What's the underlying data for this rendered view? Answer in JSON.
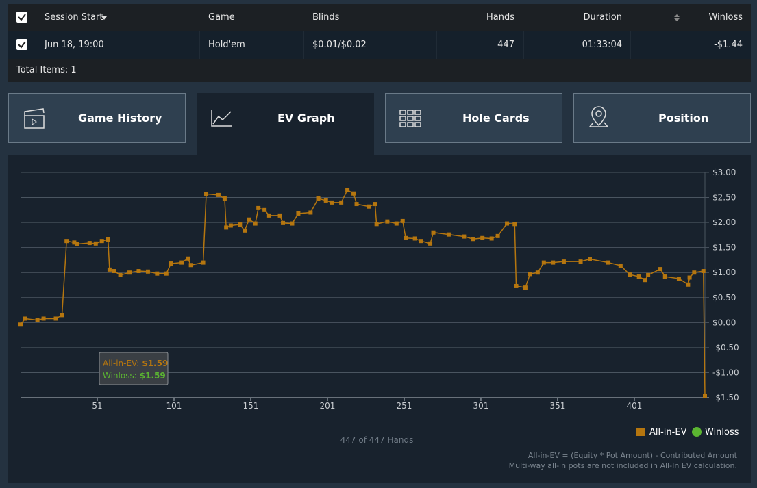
{
  "table": {
    "columns": [
      "Session Start",
      "Game",
      "Blinds",
      "Hands",
      "Duration",
      "Winloss"
    ],
    "rows": [
      [
        "Jun 18, 19:00",
        "Hold'em",
        "$0.01/$0.02",
        "447",
        "01:33:04",
        "-$1.44"
      ]
    ],
    "total": "Total Items: 1"
  },
  "tabs": [
    "Game History",
    "EV Graph",
    "Hole Cards",
    "Position"
  ],
  "chart_data": {
    "type": "line",
    "x": [
      1,
      4,
      12,
      16,
      24,
      28,
      31,
      36,
      38,
      46,
      50,
      54,
      58,
      59,
      62,
      66,
      72,
      78,
      84,
      90,
      96,
      99,
      106,
      110,
      112,
      120,
      122,
      130,
      134,
      135,
      138,
      144,
      147,
      150,
      154,
      156,
      160,
      163,
      170,
      172,
      178,
      182,
      190,
      195,
      200,
      204,
      210,
      214,
      218,
      220,
      228,
      232,
      233,
      240,
      246,
      250,
      252,
      258,
      262,
      268,
      270,
      280,
      290,
      296,
      302,
      308,
      312,
      318,
      323,
      324,
      330,
      333,
      338,
      342,
      348,
      355,
      366,
      372,
      384,
      392,
      398,
      404,
      408,
      410,
      418,
      421,
      430,
      436,
      437,
      440,
      446,
      447
    ],
    "series": [
      {
        "name": "All-in-EV",
        "color": "#b5760f",
        "values": [
          -0.04,
          0.08,
          0.05,
          0.08,
          0.08,
          0.15,
          1.63,
          1.6,
          1.57,
          1.59,
          1.58,
          1.63,
          1.66,
          1.06,
          1.03,
          0.95,
          1.0,
          1.03,
          1.02,
          0.98,
          0.98,
          1.18,
          1.2,
          1.28,
          1.15,
          1.2,
          2.57,
          2.55,
          2.48,
          1.9,
          1.94,
          1.96,
          1.84,
          2.06,
          1.98,
          2.29,
          2.25,
          2.14,
          2.14,
          1.99,
          1.98,
          2.18,
          2.2,
          2.48,
          2.44,
          2.4,
          2.4,
          2.65,
          2.58,
          2.37,
          2.32,
          2.37,
          1.97,
          2.02,
          1.98,
          2.03,
          1.69,
          1.68,
          1.63,
          1.58,
          1.8,
          1.76,
          1.72,
          1.67,
          1.69,
          1.68,
          1.73,
          1.98,
          1.97,
          0.73,
          0.7,
          0.97,
          1.0,
          1.2,
          1.2,
          1.22,
          1.22,
          1.27,
          1.2,
          1.14,
          0.96,
          0.92,
          0.85,
          0.95,
          1.07,
          0.92,
          0.88,
          0.76,
          0.9,
          1.0,
          1.03,
          -1.46
        ]
      },
      {
        "name": "Winloss",
        "color": "#5bb531"
      }
    ],
    "xlim": [
      1,
      447
    ],
    "ylim": [
      -1.5,
      3
    ],
    "xticks": [
      51,
      101,
      151,
      201,
      251,
      301,
      351,
      401
    ],
    "yticks": [
      {
        "value": -1.5,
        "label": "-$1.50"
      },
      {
        "value": -1,
        "label": "-$1.00"
      },
      {
        "value": -0.5,
        "label": "-$0.50"
      },
      {
        "value": 0,
        "label": "$0.00"
      },
      {
        "value": 0.5,
        "label": "$0.50"
      },
      {
        "value": 1,
        "label": "$1.00"
      },
      {
        "value": 1.5,
        "label": "$1.50"
      },
      {
        "value": 2,
        "label": "$2.00"
      },
      {
        "value": 2.5,
        "label": "$2.50"
      },
      {
        "value": 3,
        "label": "$3.00"
      }
    ],
    "grid": true,
    "xlabel": "447 of 447 Hands",
    "tooltip": [
      {
        "label": "All-in-EV:",
        "text": "$1.59"
      },
      {
        "label": "Winloss:",
        "text": "$1.59"
      }
    ],
    "notes": [
      "All-in-EV = (Equity * Pot Amount) - Contributed Amount",
      "Multi-way all-in pots are not included in All-In EV calculation."
    ]
  }
}
